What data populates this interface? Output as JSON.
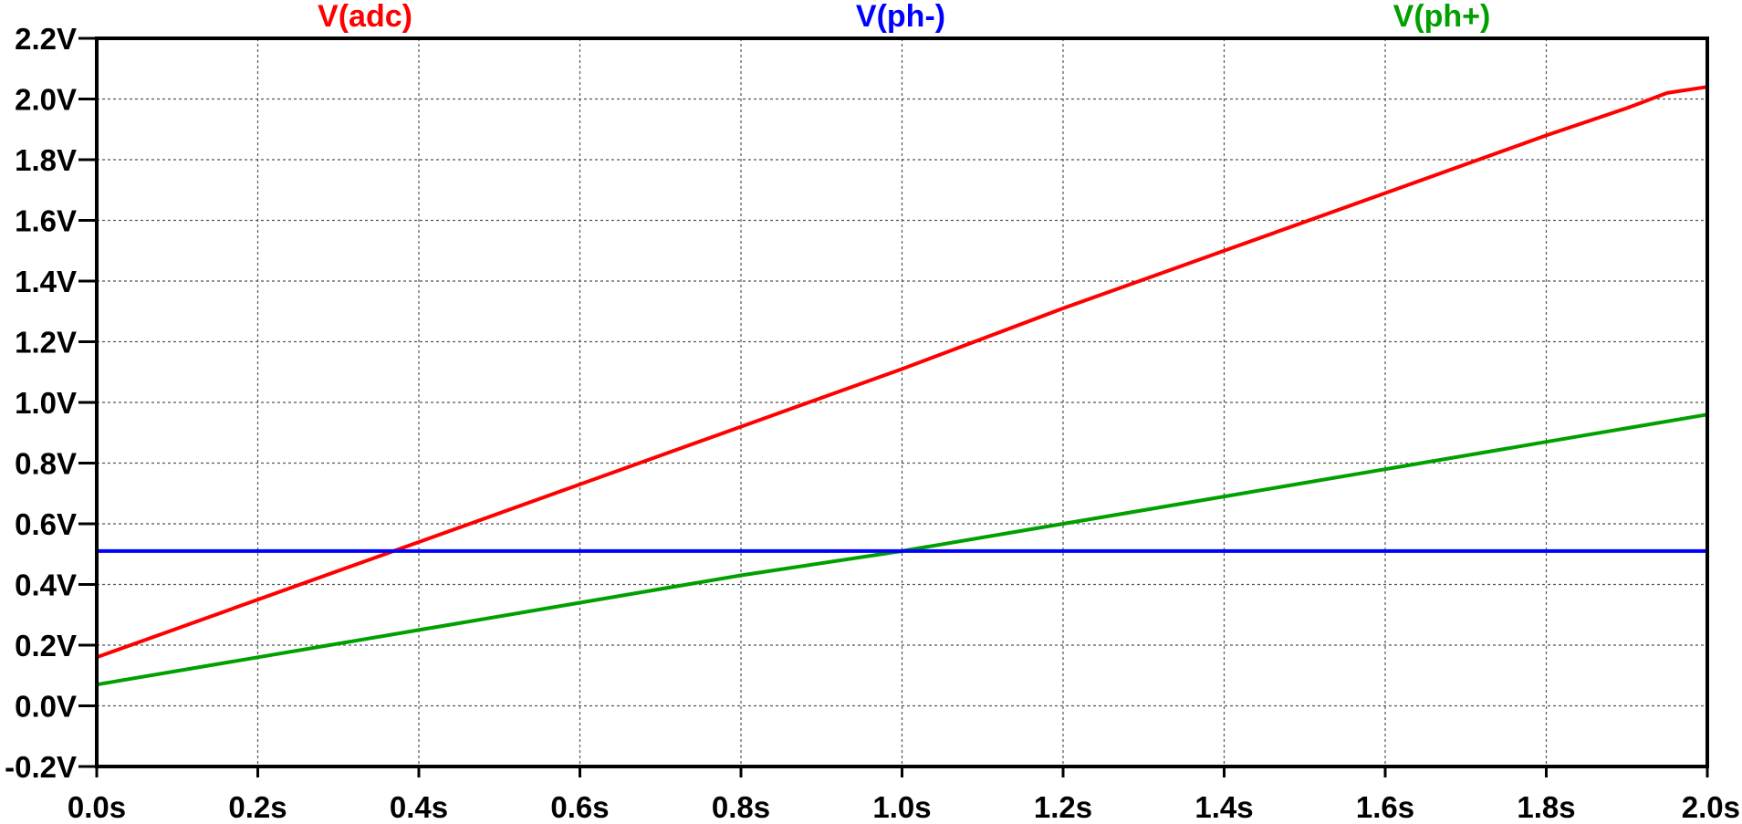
{
  "chart_data": {
    "type": "line",
    "title": "",
    "xlabel": "",
    "ylabel": "",
    "xlim": [
      0.0,
      2.0
    ],
    "ylim": [
      -0.2,
      2.2
    ],
    "grid": true,
    "legend_placement": "top",
    "x_ticks": [
      {
        "value": 0.0,
        "label": "0.0s"
      },
      {
        "value": 0.2,
        "label": "0.2s"
      },
      {
        "value": 0.4,
        "label": "0.4s"
      },
      {
        "value": 0.6,
        "label": "0.6s"
      },
      {
        "value": 0.8,
        "label": "0.8s"
      },
      {
        "value": 1.0,
        "label": "1.0s"
      },
      {
        "value": 1.2,
        "label": "1.2s"
      },
      {
        "value": 1.4,
        "label": "1.4s"
      },
      {
        "value": 1.6,
        "label": "1.6s"
      },
      {
        "value": 1.8,
        "label": "1.8s"
      },
      {
        "value": 2.0,
        "label": "2.0s"
      }
    ],
    "y_ticks": [
      {
        "value": 2.2,
        "label": "2.2V"
      },
      {
        "value": 2.0,
        "label": "2.0V"
      },
      {
        "value": 1.8,
        "label": "1.8V"
      },
      {
        "value": 1.6,
        "label": "1.6V"
      },
      {
        "value": 1.4,
        "label": "1.4V"
      },
      {
        "value": 1.2,
        "label": "1.2V"
      },
      {
        "value": 1.0,
        "label": "1.0V"
      },
      {
        "value": 0.8,
        "label": "0.8V"
      },
      {
        "value": 0.6,
        "label": "0.6V"
      },
      {
        "value": 0.4,
        "label": "0.4V"
      },
      {
        "value": 0.2,
        "label": "0.2V"
      },
      {
        "value": 0.0,
        "label": "0.0V"
      },
      {
        "value": -0.2,
        "label": "-0.2V"
      }
    ],
    "series": [
      {
        "name": "V(adc)",
        "color": "#ff0000",
        "x": [
          0.0,
          0.2,
          0.4,
          0.6,
          0.8,
          1.0,
          1.2,
          1.4,
          1.6,
          1.8,
          1.9,
          1.95,
          2.0
        ],
        "y": [
          0.16,
          0.35,
          0.54,
          0.73,
          0.92,
          1.11,
          1.31,
          1.5,
          1.69,
          1.88,
          1.97,
          2.02,
          2.04
        ]
      },
      {
        "name": "V(ph-)",
        "color": "#0000ff",
        "x": [
          0.0,
          2.0
        ],
        "y": [
          0.51,
          0.51
        ]
      },
      {
        "name": "V(ph+)",
        "color": "#00a000",
        "x": [
          0.0,
          0.2,
          0.4,
          0.6,
          0.8,
          1.0,
          1.2,
          1.4,
          1.6,
          1.8,
          2.0
        ],
        "y": [
          0.07,
          0.16,
          0.25,
          0.34,
          0.43,
          0.51,
          0.6,
          0.69,
          0.78,
          0.87,
          0.96
        ]
      }
    ]
  }
}
